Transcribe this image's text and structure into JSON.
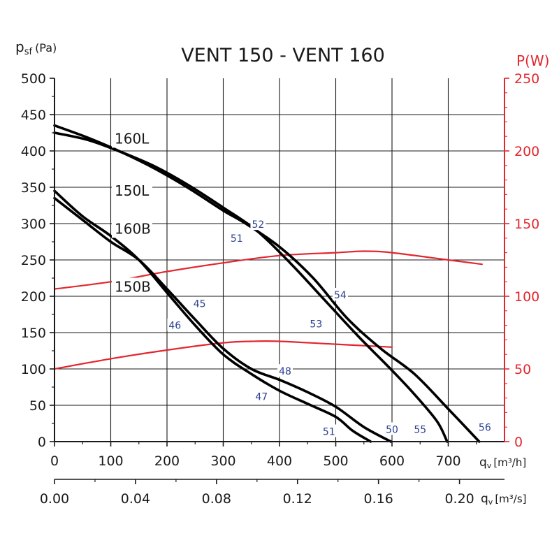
{
  "chart_data": {
    "type": "line",
    "title": "VENT 150 - VENT 160",
    "left_axis": {
      "label_main": "p",
      "label_sub": "sf",
      "label_unit": "(Pa)",
      "ticks": [
        "0",
        "50",
        "100",
        "150",
        "200",
        "250",
        "300",
        "350",
        "400",
        "450",
        "500"
      ],
      "range": [
        0,
        500
      ],
      "step": 50
    },
    "right_axis": {
      "label": "P(W)",
      "ticks": [
        "0",
        "50",
        "100",
        "150",
        "200",
        "250"
      ],
      "range": [
        0,
        250
      ],
      "step": 50,
      "color": "#e3262e"
    },
    "x_axis": {
      "label_main": "q",
      "label_sub": "v",
      "label_unit": "[m³/h]",
      "ticks": [
        "0",
        "100",
        "200",
        "300",
        "400",
        "500",
        "600",
        "700"
      ],
      "range": [
        0,
        800
      ],
      "step": 100
    },
    "x_axis_secondary": {
      "label_main": "q",
      "label_sub": "v",
      "label_unit": "[m³/s]",
      "ticks": [
        "0.00",
        "0.04",
        "0.08",
        "0.12",
        "0.16",
        "0.20"
      ],
      "tick_values": [
        0.0,
        0.04,
        0.08,
        0.12,
        0.16,
        0.2
      ]
    },
    "grid": true,
    "colors": {
      "pressure": "#000000",
      "power": "#e3262e",
      "noise_labels": "#2b3f8f",
      "text": "#1a1a1a"
    },
    "series": [
      {
        "name": "160L",
        "axis": "left",
        "points": [
          [
            0,
            425
          ],
          [
            60,
            415
          ],
          [
            120,
            398
          ],
          [
            180,
            378
          ],
          [
            240,
            352
          ],
          [
            300,
            322
          ],
          [
            360,
            290
          ],
          [
            420,
            245
          ],
          [
            480,
            195
          ],
          [
            540,
            145
          ],
          [
            600,
            98
          ],
          [
            640,
            65
          ],
          [
            680,
            28
          ],
          [
            698,
            0
          ]
        ],
        "label_at": [
          170,
          417
        ]
      },
      {
        "name": "150L",
        "axis": "left",
        "points": [
          [
            0,
            435
          ],
          [
            60,
            418
          ],
          [
            120,
            398
          ],
          [
            180,
            375
          ],
          [
            240,
            348
          ],
          [
            300,
            318
          ],
          [
            340,
            300
          ],
          [
            400,
            268
          ],
          [
            460,
            225
          ],
          [
            520,
            170
          ],
          [
            580,
            128
          ],
          [
            640,
            93
          ],
          [
            700,
            45
          ],
          [
            755,
            0
          ]
        ],
        "label_at": [
          170,
          345
        ]
      },
      {
        "name": "160B",
        "axis": "left",
        "points": [
          [
            0,
            335
          ],
          [
            50,
            305
          ],
          [
            100,
            275
          ],
          [
            150,
            250
          ],
          [
            200,
            210
          ],
          [
            250,
            168
          ],
          [
            300,
            128
          ],
          [
            350,
            100
          ],
          [
            400,
            85
          ],
          [
            450,
            68
          ],
          [
            500,
            48
          ],
          [
            550,
            20
          ],
          [
            598,
            0
          ]
        ],
        "label_at": [
          170,
          293
        ]
      },
      {
        "name": "150B",
        "axis": "left",
        "points": [
          [
            0,
            345
          ],
          [
            50,
            310
          ],
          [
            100,
            283
          ],
          [
            150,
            250
          ],
          [
            200,
            205
          ],
          [
            250,
            160
          ],
          [
            300,
            120
          ],
          [
            350,
            93
          ],
          [
            400,
            70
          ],
          [
            450,
            52
          ],
          [
            500,
            34
          ],
          [
            530,
            15
          ],
          [
            562,
            0
          ]
        ],
        "label_at": [
          170,
          213
        ]
      },
      {
        "name": "",
        "axis": "right",
        "points": [
          [
            0,
            105
          ],
          [
            100,
            110
          ],
          [
            200,
            117
          ],
          [
            300,
            123
          ],
          [
            400,
            128
          ],
          [
            500,
            130
          ],
          [
            550,
            131
          ],
          [
            600,
            130
          ],
          [
            700,
            125
          ],
          [
            760,
            122
          ]
        ]
      },
      {
        "name": "",
        "axis": "right",
        "points": [
          [
            0,
            50
          ],
          [
            100,
            57
          ],
          [
            200,
            63
          ],
          [
            300,
            68
          ],
          [
            350,
            69
          ],
          [
            400,
            69
          ],
          [
            500,
            67
          ],
          [
            600,
            65
          ]
        ]
      }
    ],
    "noise_labels": [
      {
        "text": "52",
        "x": 362,
        "y": 297
      },
      {
        "text": "51",
        "x": 324,
        "y": 278
      },
      {
        "text": "54",
        "x": 508,
        "y": 200
      },
      {
        "text": "53",
        "x": 465,
        "y": 160
      },
      {
        "text": "45",
        "x": 258,
        "y": 188
      },
      {
        "text": "46",
        "x": 214,
        "y": 158
      },
      {
        "text": "48",
        "x": 410,
        "y": 95
      },
      {
        "text": "47",
        "x": 368,
        "y": 60
      },
      {
        "text": "51",
        "x": 488,
        "y": 12
      },
      {
        "text": "50",
        "x": 600,
        "y": 15
      },
      {
        "text": "55",
        "x": 650,
        "y": 15
      },
      {
        "text": "56",
        "x": 765,
        "y": 18
      }
    ]
  }
}
